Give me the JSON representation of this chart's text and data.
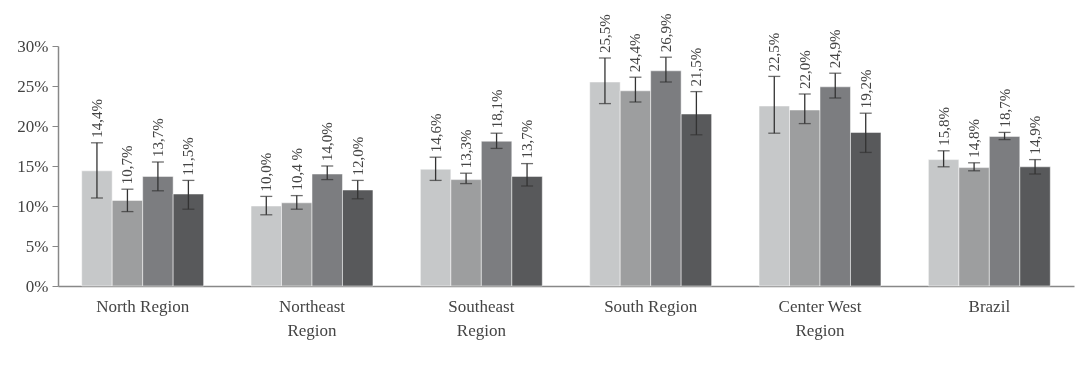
{
  "chart_data": {
    "type": "bar",
    "categories": [
      "North Region",
      "Northeast Region",
      "Southeast Region",
      "South Region",
      "Center West Region",
      "Brazil"
    ],
    "series": [
      {
        "color": "#c6c8c9",
        "values": [
          14.4,
          10.0,
          14.6,
          25.5,
          22.5,
          15.8
        ],
        "errors": [
          [
            11.0,
            17.9
          ],
          [
            8.9,
            11.2
          ],
          [
            13.2,
            16.1
          ],
          [
            22.8,
            28.5
          ],
          [
            19.1,
            26.2
          ],
          [
            14.9,
            16.9
          ]
        ],
        "value_labels": [
          "14,4%",
          "10,0%",
          "14,6%",
          "25,5%",
          "22,5%",
          "15,8%"
        ]
      },
      {
        "color": "#9d9e9f",
        "values": [
          10.7,
          10.4,
          13.3,
          24.4,
          22.0,
          14.8
        ],
        "errors": [
          [
            9.3,
            12.1
          ],
          [
            9.6,
            11.3
          ],
          [
            12.8,
            14.1
          ],
          [
            23.0,
            26.1
          ],
          [
            20.3,
            24.0
          ],
          [
            14.4,
            15.4
          ]
        ],
        "value_labels": [
          "10,7%",
          "10,4 %",
          "13,3%",
          "24,4%",
          "22,0%",
          "14,8%"
        ]
      },
      {
        "color": "#7c7d80",
        "values": [
          13.7,
          14.0,
          18.1,
          26.9,
          24.9,
          18.7
        ],
        "errors": [
          [
            11.9,
            15.5
          ],
          [
            13.3,
            15.0
          ],
          [
            17.2,
            19.1
          ],
          [
            25.5,
            28.6
          ],
          [
            23.5,
            26.6
          ],
          [
            18.3,
            19.2
          ]
        ],
        "value_labels": [
          "13,7%",
          "14,0%",
          "18,1%",
          "26,9%",
          "24,9%",
          "18,7%"
        ]
      },
      {
        "color": "#58595b",
        "values": [
          11.5,
          12.0,
          13.7,
          21.5,
          19.2,
          14.9
        ],
        "errors": [
          [
            9.6,
            13.2
          ],
          [
            10.9,
            13.2
          ],
          [
            12.5,
            15.3
          ],
          [
            18.9,
            24.3
          ],
          [
            16.7,
            21.6
          ],
          [
            14.0,
            15.8
          ]
        ],
        "value_labels": [
          "11,5%",
          "12,0%",
          "13,7%",
          "21,5%",
          "19,2%",
          "14,9%"
        ]
      }
    ],
    "ylim": [
      0,
      30
    ],
    "yticks": [
      {
        "value": 0,
        "label": "0%"
      },
      {
        "value": 5,
        "label": "5%"
      },
      {
        "value": 10,
        "label": "10%"
      },
      {
        "value": 15,
        "label": "15%"
      },
      {
        "value": 20,
        "label": "20%"
      },
      {
        "value": 25,
        "label": "25%"
      },
      {
        "value": 30,
        "label": "30%"
      }
    ],
    "grid": false,
    "legend": false
  }
}
